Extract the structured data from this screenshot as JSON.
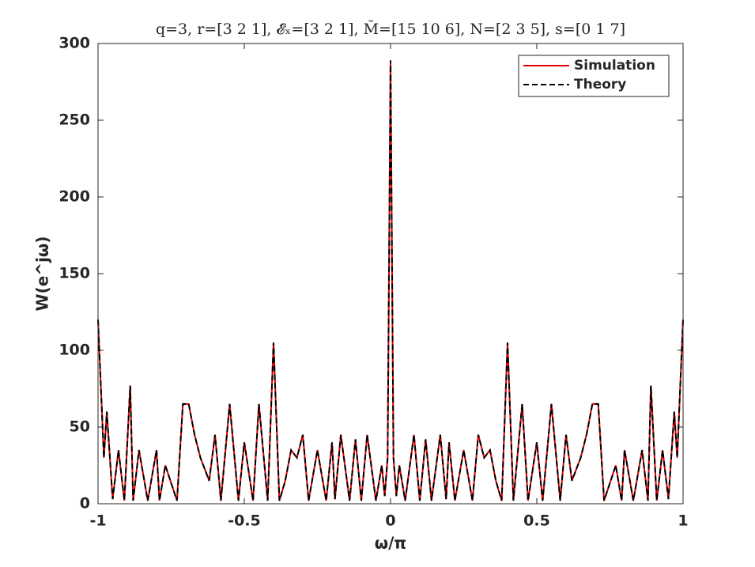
{
  "chart_data": {
    "type": "line",
    "title": "q=3, r=[3 2 1], 𝓔ₓ=[3 2 1], M̆=[15 10 6], N=[2 3 5], s=[0 1 7]",
    "x_label": "ω/π",
    "y_label": "W(e^jω)",
    "x": [
      -1,
      -0.98,
      -0.97,
      -0.95,
      -0.93,
      -0.91,
      -0.89,
      -0.88,
      -0.86,
      -0.83,
      -0.8,
      -0.79,
      -0.77,
      -0.73,
      -0.71,
      -0.69,
      -0.67,
      -0.65,
      -0.62,
      -0.6,
      -0.58,
      -0.55,
      -0.52,
      -0.5,
      -0.47,
      -0.45,
      -0.42,
      -0.4,
      -0.38,
      -0.36,
      -0.34,
      -0.32,
      -0.3,
      -0.28,
      -0.25,
      -0.22,
      -0.2,
      -0.19,
      -0.17,
      -0.14,
      -0.12,
      -0.1,
      -0.08,
      -0.05,
      -0.03,
      -0.02,
      -0.01,
      0,
      0.01,
      0.02,
      0.03,
      0.05,
      0.08,
      0.1,
      0.12,
      0.14,
      0.17,
      0.19,
      0.2,
      0.22,
      0.25,
      0.28,
      0.3,
      0.32,
      0.34,
      0.36,
      0.38,
      0.4,
      0.42,
      0.45,
      0.47,
      0.5,
      0.52,
      0.55,
      0.58,
      0.6,
      0.62,
      0.65,
      0.67,
      0.69,
      0.71,
      0.73,
      0.77,
      0.79,
      0.8,
      0.83,
      0.86,
      0.88,
      0.89,
      0.91,
      0.93,
      0.95,
      0.97,
      0.98,
      1
    ],
    "series": [
      {
        "name": "Simulation",
        "color": "#e00000",
        "dash": false,
        "values": [
          120,
          30,
          60,
          3,
          35,
          2,
          77,
          2,
          35,
          2,
          35,
          2,
          25,
          2,
          65,
          65,
          45,
          30,
          15,
          45,
          2,
          65,
          2,
          40,
          2,
          65,
          2,
          105,
          2,
          15,
          35,
          30,
          45,
          2,
          35,
          2,
          40,
          3,
          45,
          2,
          42,
          2,
          45,
          2,
          25,
          5,
          30,
          289,
          30,
          5,
          25,
          2,
          45,
          2,
          42,
          2,
          45,
          3,
          40,
          2,
          35,
          2,
          45,
          30,
          35,
          15,
          2,
          105,
          2,
          65,
          2,
          40,
          2,
          65,
          2,
          45,
          15,
          30,
          45,
          65,
          65,
          2,
          25,
          2,
          35,
          2,
          35,
          2,
          77,
          2,
          35,
          3,
          60,
          30,
          120
        ]
      },
      {
        "name": "Theory",
        "color": "#000000",
        "dash": true,
        "values": [
          120,
          30,
          60,
          3,
          35,
          2,
          77,
          2,
          35,
          2,
          35,
          2,
          25,
          2,
          65,
          65,
          45,
          30,
          15,
          45,
          2,
          65,
          2,
          40,
          2,
          65,
          2,
          105,
          2,
          15,
          35,
          30,
          45,
          2,
          35,
          2,
          40,
          3,
          45,
          2,
          42,
          2,
          45,
          2,
          25,
          5,
          30,
          289,
          30,
          5,
          25,
          2,
          45,
          2,
          42,
          2,
          45,
          3,
          40,
          2,
          35,
          2,
          45,
          30,
          35,
          15,
          2,
          105,
          2,
          65,
          2,
          40,
          2,
          65,
          2,
          45,
          15,
          30,
          45,
          65,
          65,
          2,
          25,
          2,
          35,
          2,
          35,
          2,
          77,
          2,
          35,
          3,
          60,
          30,
          120
        ]
      }
    ],
    "xlim": [
      -1,
      1
    ],
    "ylim": [
      0,
      300
    ],
    "xticks": [
      -1,
      -0.5,
      0,
      0.5,
      1
    ],
    "yticks": [
      0,
      50,
      100,
      150,
      200,
      250,
      300
    ],
    "grid": false,
    "legend": "northeast"
  }
}
